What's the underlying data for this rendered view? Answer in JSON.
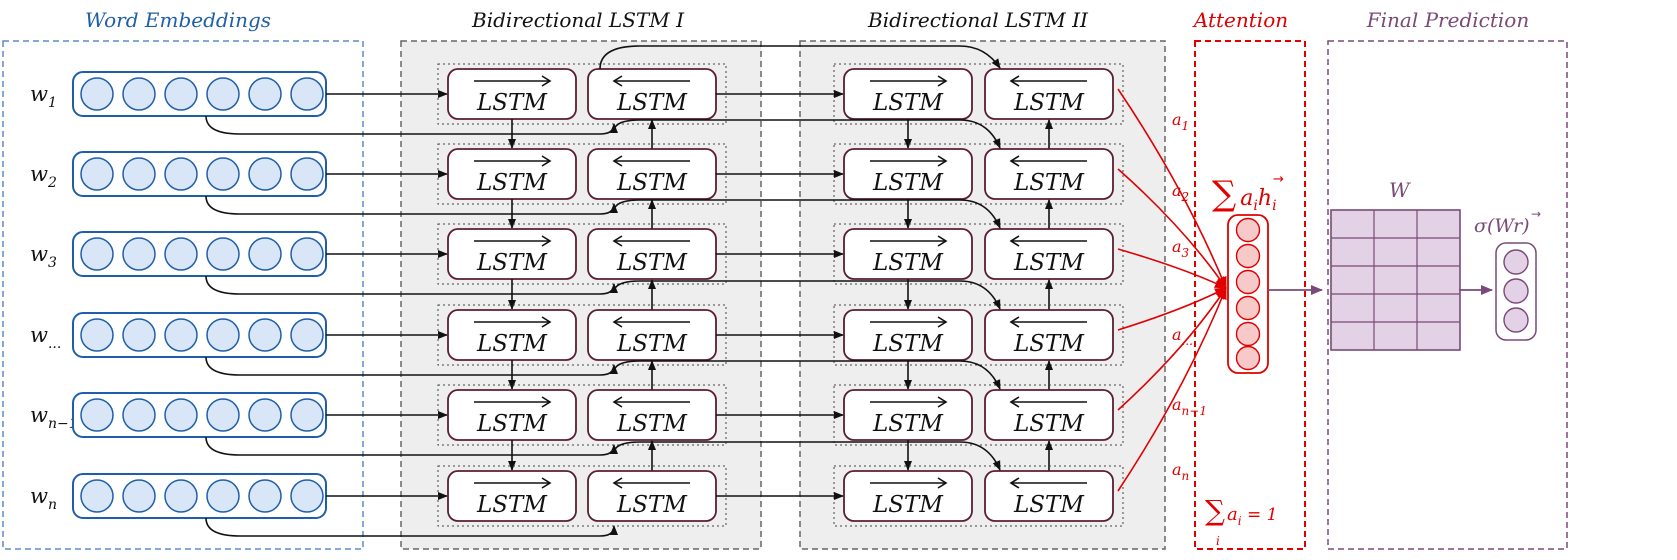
{
  "titles": {
    "word_embeddings": "Word Embeddings",
    "bilstm1": "Bidirectional LSTM I",
    "bilstm2": "Bidirectional LSTM II",
    "attention": "Attention",
    "final_prediction": "Final Prediction"
  },
  "words": [
    {
      "base": "w",
      "sub": "1"
    },
    {
      "base": "w",
      "sub": "2"
    },
    {
      "base": "w",
      "sub": "3"
    },
    {
      "base": "w",
      "sub": "..."
    },
    {
      "base": "w",
      "sub": "n−1"
    },
    {
      "base": "w",
      "sub": "n"
    }
  ],
  "lstm_label": "LSTM",
  "attention_weights": [
    {
      "base": "a",
      "sub": "1"
    },
    {
      "base": "a",
      "sub": "2"
    },
    {
      "base": "a",
      "sub": "3"
    },
    {
      "base": "a",
      "sub": "..."
    },
    {
      "base": "a",
      "sub": "n−1"
    },
    {
      "base": "a",
      "sub": "n"
    }
  ],
  "weighted_sum": {
    "sigma": "∑",
    "a": "a",
    "i": "i",
    "h": "h",
    "arrow": "→"
  },
  "constraint": {
    "sigma": "∑",
    "a": "a",
    "i": "i",
    "rest": " = 1"
  },
  "weight_matrix_label": "W",
  "output_label": "σ(W",
  "output_label_r": "r",
  "output_label_close": ")",
  "colors": {
    "word_blue": "#1f5fa8",
    "word_fill": "#d8e6f7",
    "attention_red": "#e00000",
    "attention_fill": "#f7c9c9",
    "purple": "#7a4a78",
    "matrix_fill": "#e3d2e6",
    "lstm_border": "#5a1e2e",
    "panel_fill": "#eeeeee"
  },
  "icons": {
    "word_node": "circle",
    "lstm_forward_arrow": "right-arrow-overline",
    "lstm_backward_arrow": "left-arrow-overline"
  }
}
